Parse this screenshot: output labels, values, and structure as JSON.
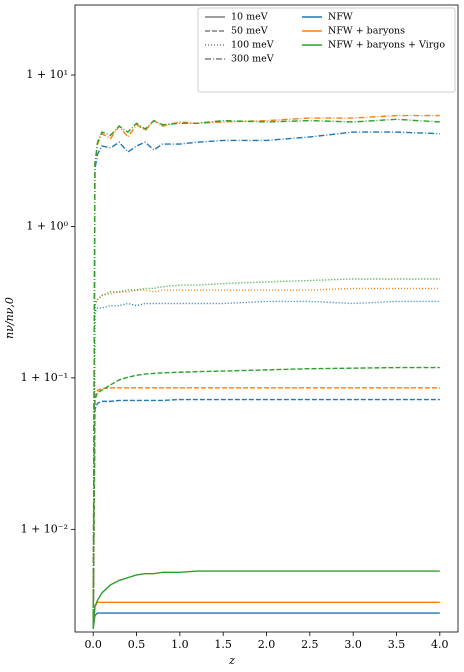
{
  "chart_data": {
    "type": "line",
    "xlabel": "z",
    "ylabel": "nν/nν,0",
    "log_y": true,
    "legend": "upper right",
    "xlim": [
      -0.21,
      4.21
    ],
    "ylim": [
      0.0021,
      29
    ],
    "xticks": [
      {
        "value": 0,
        "label": "0.0"
      },
      0.5,
      {
        "value": 1,
        "label": "1.0"
      },
      1.5,
      {
        "value": 2,
        "label": "2.0"
      },
      2.5,
      {
        "value": 3,
        "label": "3.0"
      },
      3.5,
      {
        "value": 4,
        "label": "4.0"
      }
    ],
    "yticks": [
      {
        "value": 10,
        "label": "1 + 10¹"
      },
      {
        "value": 1,
        "label": "1 + 10⁰"
      },
      {
        "value": 0.1,
        "label": "1 + 10⁻¹"
      },
      {
        "value": 0.01,
        "label": "1 + 10⁻²"
      }
    ],
    "models": [
      {
        "name": "NFW",
        "color": "#1f77b4"
      },
      {
        "name": "NFW + baryons",
        "color": "#ff7f0e"
      },
      {
        "name": "NFW + baryons + Virgo",
        "color": "#2ca02c"
      }
    ],
    "x": [
      0,
      0.02,
      0.05,
      0.1,
      0.2,
      0.3,
      0.4,
      0.5,
      0.6,
      0.7,
      0.8,
      1.0,
      1.2,
      1.5,
      2.0,
      2.5,
      3.0,
      3.5,
      4.0
    ],
    "series": [
      {
        "name": "10 meV",
        "linestyle": "solid",
        "lines": [
          [
            0.0022,
            0.0027,
            0.0028,
            0.0028,
            0.0028,
            0.0028,
            0.0028,
            0.0028,
            0.0028,
            0.0028,
            0.0028,
            0.0028,
            0.0028,
            0.0028,
            0.0028,
            0.0028,
            0.0028,
            0.0028,
            0.0028
          ],
          [
            0.0022,
            0.0031,
            0.0033,
            0.0033,
            0.0033,
            0.0033,
            0.0033,
            0.0033,
            0.0033,
            0.0033,
            0.0033,
            0.0033,
            0.0033,
            0.0033,
            0.0033,
            0.0033,
            0.0033,
            0.0033,
            0.0033
          ],
          [
            0.0022,
            0.0031,
            0.0034,
            0.0038,
            0.0043,
            0.0046,
            0.0048,
            0.005,
            0.0051,
            0.0051,
            0.0052,
            0.0052,
            0.0053,
            0.0053,
            0.0053,
            0.0053,
            0.0053,
            0.0053,
            0.0053
          ]
        ]
      },
      {
        "name": "50 meV",
        "linestyle": "dashed",
        "lines": [
          [
            0.0022,
            0.062,
            0.068,
            0.07,
            0.07,
            0.071,
            0.071,
            0.071,
            0.071,
            0.071,
            0.071,
            0.072,
            0.072,
            0.072,
            0.072,
            0.072,
            0.072,
            0.072,
            0.072
          ],
          [
            0.0022,
            0.075,
            0.083,
            0.085,
            0.086,
            0.086,
            0.086,
            0.086,
            0.086,
            0.086,
            0.086,
            0.086,
            0.086,
            0.086,
            0.086,
            0.086,
            0.086,
            0.086,
            0.086
          ],
          [
            0.0022,
            0.072,
            0.08,
            0.083,
            0.09,
            0.097,
            0.101,
            0.104,
            0.106,
            0.107,
            0.108,
            0.109,
            0.11,
            0.111,
            0.113,
            0.115,
            0.116,
            0.117,
            0.117
          ]
        ]
      },
      {
        "name": "100 meV",
        "linestyle": "dotted",
        "lines": [
          [
            0.0022,
            0.27,
            0.29,
            0.29,
            0.3,
            0.3,
            0.31,
            0.3,
            0.31,
            0.31,
            0.31,
            0.31,
            0.31,
            0.31,
            0.32,
            0.32,
            0.31,
            0.32,
            0.32
          ],
          [
            0.0022,
            0.3,
            0.33,
            0.35,
            0.36,
            0.37,
            0.37,
            0.38,
            0.38,
            0.37,
            0.38,
            0.38,
            0.38,
            0.38,
            0.38,
            0.38,
            0.39,
            0.39,
            0.39
          ],
          [
            0.0022,
            0.31,
            0.33,
            0.35,
            0.37,
            0.37,
            0.38,
            0.38,
            0.39,
            0.39,
            0.4,
            0.41,
            0.41,
            0.42,
            0.43,
            0.44,
            0.45,
            0.45,
            0.45
          ]
        ]
      },
      {
        "name": "300 meV",
        "linestyle": "dashdot",
        "lines": [
          [
            0.0022,
            2.4,
            3.0,
            3.4,
            3.3,
            3.6,
            3.1,
            3.4,
            3.6,
            3.2,
            3.5,
            3.5,
            3.6,
            3.7,
            3.7,
            3.9,
            4.2,
            4.2,
            4.1
          ],
          [
            0.0022,
            2.6,
            3.5,
            4.1,
            3.8,
            4.6,
            3.9,
            4.7,
            4.3,
            5.0,
            4.6,
            4.9,
            4.8,
            4.9,
            5.0,
            5.2,
            5.2,
            5.4,
            5.4
          ],
          [
            0.0022,
            2.6,
            3.6,
            4.2,
            4.0,
            4.6,
            4.2,
            4.8,
            4.4,
            5.0,
            4.7,
            4.8,
            4.8,
            5.0,
            4.9,
            5.0,
            4.9,
            5.1,
            4.9
          ]
        ]
      }
    ]
  }
}
